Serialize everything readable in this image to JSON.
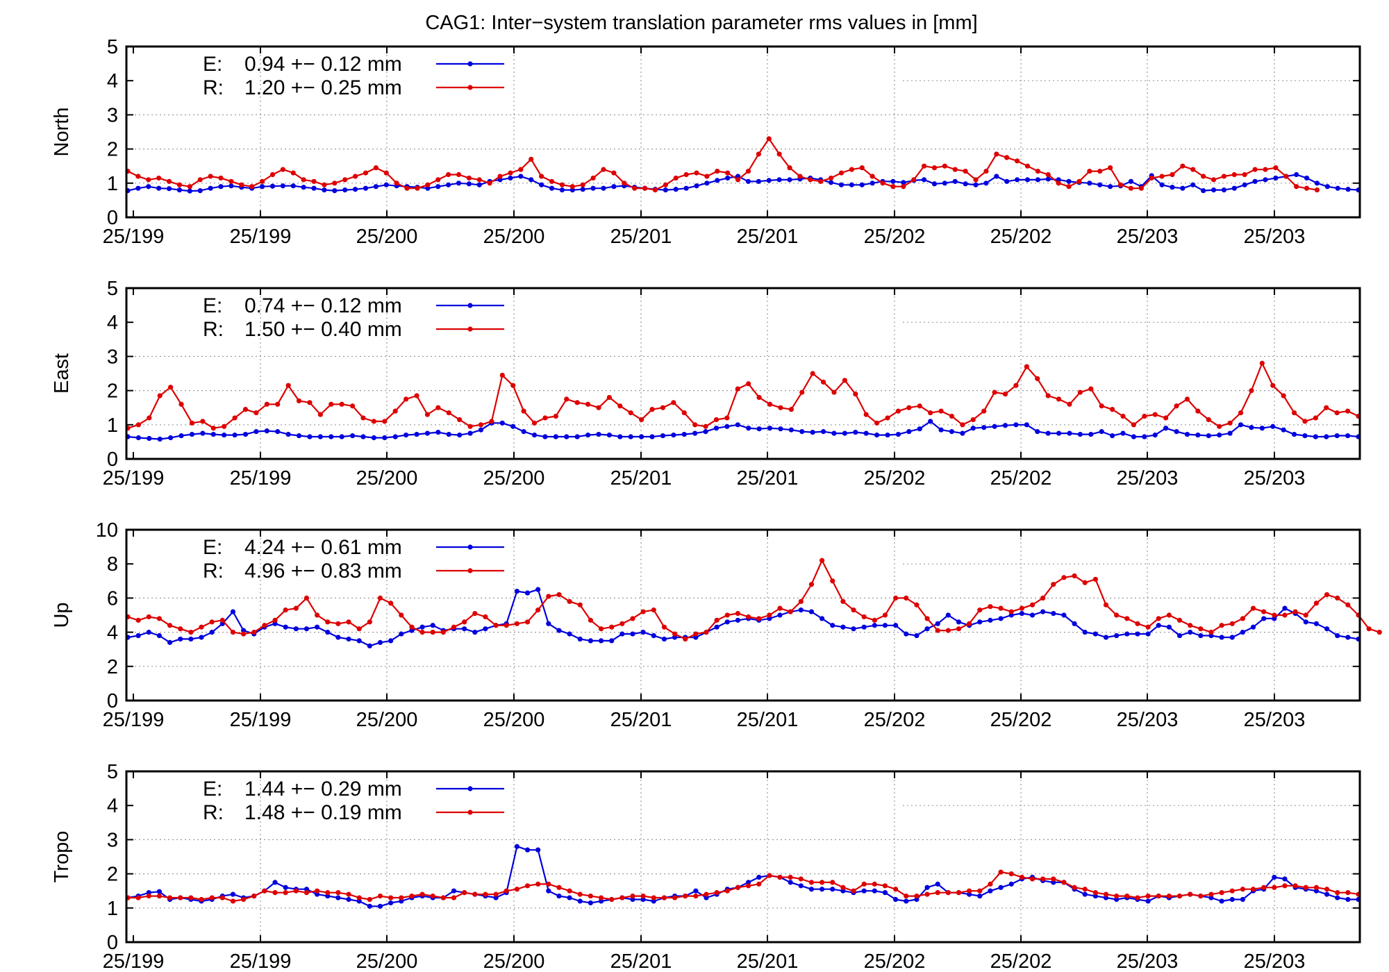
{
  "title": "CAG1: Inter−system translation parameter rms values in [mm]",
  "colors": {
    "E": "#0000dd",
    "R": "#dd0000",
    "axis": "#000000",
    "grid": "#9a9a9a"
  },
  "chart_data": [
    {
      "type": "line",
      "ylabel": "North",
      "ylim": [
        0,
        5
      ],
      "yticks": [
        0,
        1,
        2,
        3,
        4,
        5
      ],
      "xtick_labels": [
        "25/199",
        "25/199",
        "25/200",
        "25/200",
        "25/201",
        "25/201",
        "25/202",
        "25/202",
        "25/203",
        "25/203"
      ],
      "grid": true,
      "legend_position": "top-left",
      "series": [
        {
          "name": "E",
          "legend_text": "0.94 +− 0.12 mm",
          "values": [
            0.78,
            0.85,
            0.9,
            0.85,
            0.84,
            0.8,
            0.77,
            0.78,
            0.85,
            0.9,
            0.92,
            0.88,
            0.85,
            0.9,
            0.91,
            0.92,
            0.92,
            0.88,
            0.85,
            0.8,
            0.78,
            0.8,
            0.82,
            0.85,
            0.9,
            0.95,
            0.92,
            0.9,
            0.88,
            0.85,
            0.9,
            0.95,
            1.0,
            0.98,
            0.95,
            1.05,
            1.1,
            1.15,
            1.2,
            1.1,
            0.95,
            0.85,
            0.8,
            0.8,
            0.82,
            0.85,
            0.85,
            0.9,
            0.92,
            0.88,
            0.85,
            0.82,
            0.8,
            0.82,
            0.85,
            0.92,
            1.0,
            1.08,
            1.15,
            1.2,
            1.05,
            1.05,
            1.08,
            1.1,
            1.1,
            1.12,
            1.15,
            1.1,
            1.02,
            0.95,
            0.95,
            0.95,
            1.0,
            1.05,
            1.05,
            1.02,
            1.08,
            1.1,
            0.98,
            1.0,
            1.05,
            0.98,
            0.95,
            1.0,
            1.2,
            1.05,
            1.1,
            1.1,
            1.1,
            1.12,
            1.1,
            1.05,
            1.02,
            1.0,
            0.95,
            0.9,
            0.92,
            1.05,
            0.9,
            1.22,
            0.95,
            0.88,
            0.85,
            0.95,
            0.78,
            0.8,
            0.8,
            0.85,
            0.95,
            1.05,
            1.1,
            1.15,
            1.2,
            1.25,
            1.15,
            1.0,
            0.9,
            0.85,
            0.82,
            0.8
          ]
        },
        {
          "name": "R",
          "legend_text": "1.20 +− 0.25 mm",
          "values": [
            1.35,
            1.2,
            1.1,
            1.15,
            1.05,
            0.95,
            0.9,
            1.1,
            1.2,
            1.15,
            1.05,
            0.95,
            0.9,
            1.05,
            1.25,
            1.4,
            1.3,
            1.1,
            1.05,
            0.95,
            1.0,
            1.1,
            1.2,
            1.3,
            1.45,
            1.3,
            1.0,
            0.85,
            0.85,
            0.95,
            1.1,
            1.25,
            1.25,
            1.15,
            1.1,
            1.0,
            1.2,
            1.3,
            1.4,
            1.7,
            1.2,
            1.05,
            0.95,
            0.9,
            0.95,
            1.15,
            1.4,
            1.3,
            1.0,
            0.85,
            0.85,
            0.8,
            0.95,
            1.15,
            1.25,
            1.3,
            1.2,
            1.35,
            1.3,
            1.1,
            1.35,
            1.85,
            2.3,
            1.85,
            1.45,
            1.2,
            1.1,
            1.05,
            1.15,
            1.3,
            1.4,
            1.45,
            1.2,
            1.0,
            0.9,
            0.9,
            1.1,
            1.5,
            1.45,
            1.5,
            1.4,
            1.35,
            1.1,
            1.35,
            1.85,
            1.75,
            1.65,
            1.5,
            1.35,
            1.25,
            1.0,
            0.9,
            1.05,
            1.35,
            1.35,
            1.45,
            0.95,
            0.85,
            0.85,
            1.15,
            1.2,
            1.25,
            1.5,
            1.4,
            1.2,
            1.1,
            1.2,
            1.25,
            1.25,
            1.4,
            1.4,
            1.45,
            1.2,
            0.9,
            0.85,
            0.8
          ]
        }
      ]
    },
    {
      "type": "line",
      "ylabel": "East",
      "ylim": [
        0,
        5
      ],
      "yticks": [
        0,
        1,
        2,
        3,
        4,
        5
      ],
      "xtick_labels": [
        "25/199",
        "25/199",
        "25/200",
        "25/200",
        "25/201",
        "25/201",
        "25/202",
        "25/202",
        "25/203",
        "25/203"
      ],
      "grid": true,
      "legend_position": "top-left",
      "series": [
        {
          "name": "E",
          "legend_text": "0.74 +− 0.12 mm",
          "values": [
            0.65,
            0.62,
            0.6,
            0.58,
            0.62,
            0.68,
            0.72,
            0.75,
            0.72,
            0.7,
            0.7,
            0.72,
            0.8,
            0.82,
            0.8,
            0.72,
            0.68,
            0.65,
            0.65,
            0.65,
            0.65,
            0.68,
            0.65,
            0.62,
            0.62,
            0.65,
            0.7,
            0.72,
            0.75,
            0.78,
            0.72,
            0.7,
            0.75,
            0.85,
            1.05,
            1.05,
            0.95,
            0.8,
            0.7,
            0.65,
            0.65,
            0.65,
            0.65,
            0.7,
            0.72,
            0.7,
            0.65,
            0.65,
            0.65,
            0.65,
            0.68,
            0.7,
            0.72,
            0.75,
            0.8,
            0.9,
            0.95,
            1.0,
            0.9,
            0.88,
            0.9,
            0.88,
            0.85,
            0.8,
            0.78,
            0.8,
            0.75,
            0.75,
            0.78,
            0.75,
            0.7,
            0.7,
            0.72,
            0.8,
            0.88,
            1.1,
            0.85,
            0.8,
            0.75,
            0.9,
            0.92,
            0.95,
            0.98,
            1.0,
            1.0,
            0.8,
            0.75,
            0.75,
            0.75,
            0.72,
            0.72,
            0.8,
            0.68,
            0.75,
            0.65,
            0.65,
            0.7,
            0.9,
            0.8,
            0.72,
            0.7,
            0.68,
            0.7,
            0.75,
            1.0,
            0.92,
            0.9,
            0.95,
            0.85,
            0.72,
            0.68,
            0.65,
            0.65,
            0.68,
            0.68,
            0.65
          ]
        },
        {
          "name": "R",
          "legend_text": "1.50 +− 0.40 mm",
          "values": [
            0.9,
            1.0,
            1.2,
            1.85,
            2.1,
            1.6,
            1.05,
            1.1,
            0.9,
            0.95,
            1.2,
            1.45,
            1.35,
            1.6,
            1.6,
            2.15,
            1.7,
            1.65,
            1.3,
            1.6,
            1.6,
            1.55,
            1.2,
            1.1,
            1.1,
            1.4,
            1.75,
            1.85,
            1.3,
            1.5,
            1.35,
            1.15,
            0.95,
            1.0,
            1.1,
            2.45,
            2.15,
            1.4,
            1.05,
            1.2,
            1.25,
            1.75,
            1.65,
            1.6,
            1.5,
            1.8,
            1.55,
            1.35,
            1.15,
            1.45,
            1.5,
            1.65,
            1.35,
            1.0,
            0.95,
            1.15,
            1.2,
            2.05,
            2.2,
            1.8,
            1.6,
            1.5,
            1.45,
            1.95,
            2.5,
            2.25,
            1.95,
            2.3,
            1.9,
            1.3,
            1.05,
            1.2,
            1.4,
            1.5,
            1.55,
            1.35,
            1.4,
            1.25,
            1.0,
            1.15,
            1.4,
            1.95,
            1.9,
            2.15,
            2.7,
            2.35,
            1.85,
            1.75,
            1.6,
            1.95,
            2.05,
            1.55,
            1.45,
            1.25,
            1.0,
            1.25,
            1.3,
            1.2,
            1.55,
            1.75,
            1.4,
            1.15,
            0.95,
            1.05,
            1.35,
            2.0,
            2.8,
            2.15,
            1.85,
            1.35,
            1.1,
            1.2,
            1.5,
            1.35,
            1.4,
            1.25
          ]
        }
      ]
    },
    {
      "type": "line",
      "ylabel": "Up",
      "ylim": [
        0,
        10
      ],
      "yticks": [
        0,
        2,
        4,
        6,
        8,
        10
      ],
      "xtick_labels": [
        "25/199",
        "25/199",
        "25/200",
        "25/200",
        "25/201",
        "25/201",
        "25/202",
        "25/202",
        "25/203",
        "25/203"
      ],
      "grid": true,
      "legend_position": "top-left",
      "series": [
        {
          "name": "E",
          "legend_text": "4.24 +− 0.61 mm",
          "values": [
            3.7,
            3.8,
            4.0,
            3.8,
            3.4,
            3.6,
            3.6,
            3.7,
            4.0,
            4.5,
            5.2,
            4.1,
            3.9,
            4.3,
            4.5,
            4.3,
            4.2,
            4.2,
            4.3,
            4.0,
            3.7,
            3.6,
            3.5,
            3.2,
            3.4,
            3.5,
            3.9,
            4.1,
            4.3,
            4.4,
            4.1,
            4.2,
            4.2,
            4.0,
            4.2,
            4.4,
            4.5,
            6.4,
            6.3,
            6.5,
            4.5,
            4.1,
            3.9,
            3.6,
            3.5,
            3.5,
            3.5,
            3.9,
            3.9,
            4.0,
            3.8,
            3.6,
            3.7,
            3.7,
            3.7,
            4.0,
            4.3,
            4.6,
            4.7,
            4.8,
            4.7,
            4.8,
            5.0,
            5.2,
            5.3,
            5.2,
            4.8,
            4.4,
            4.3,
            4.2,
            4.3,
            4.4,
            4.4,
            4.4,
            3.9,
            3.8,
            4.2,
            4.5,
            5.0,
            4.6,
            4.4,
            4.6,
            4.7,
            4.8,
            5.0,
            5.1,
            5.0,
            5.2,
            5.1,
            5.0,
            4.5,
            4.0,
            3.9,
            3.7,
            3.8,
            3.9,
            3.9,
            3.9,
            4.4,
            4.3,
            3.8,
            4.0,
            3.8,
            3.8,
            3.7,
            3.7,
            4.0,
            4.3,
            4.8,
            4.8,
            5.4,
            5.1,
            4.6,
            4.5,
            4.2,
            3.8,
            3.7,
            3.6
          ]
        },
        {
          "name": "R",
          "legend_text": "4.96 +− 0.83 mm",
          "values": [
            4.9,
            4.7,
            4.9,
            4.8,
            4.4,
            4.2,
            4.0,
            4.3,
            4.6,
            4.7,
            4.0,
            3.9,
            4.0,
            4.4,
            4.7,
            5.3,
            5.4,
            6.0,
            5.0,
            4.6,
            4.5,
            4.6,
            4.2,
            4.6,
            6.0,
            5.7,
            5.0,
            4.3,
            4.0,
            4.0,
            4.0,
            4.3,
            4.6,
            5.1,
            4.9,
            4.4,
            4.4,
            4.5,
            4.6,
            5.3,
            6.1,
            6.2,
            5.8,
            5.6,
            4.7,
            4.2,
            4.3,
            4.5,
            4.8,
            5.2,
            5.3,
            4.3,
            3.9,
            3.6,
            3.9,
            4.0,
            4.7,
            5.0,
            5.1,
            4.9,
            4.8,
            5.0,
            5.4,
            5.2,
            5.8,
            6.8,
            8.2,
            7.0,
            5.8,
            5.3,
            4.9,
            4.7,
            5.0,
            6.0,
            6.0,
            5.6,
            4.8,
            4.1,
            4.1,
            4.2,
            4.5,
            5.3,
            5.5,
            5.4,
            5.2,
            5.4,
            5.6,
            6.0,
            6.8,
            7.2,
            7.3,
            6.9,
            7.1,
            5.6,
            5.0,
            4.8,
            4.5,
            4.3,
            4.8,
            5.0,
            4.7,
            4.4,
            4.2,
            4.0,
            4.4,
            4.5,
            4.8,
            5.4,
            5.2,
            5.0,
            5.0,
            5.2,
            5.0,
            5.7,
            6.2,
            6.0,
            5.6,
            5.0,
            4.2,
            4.0
          ]
        }
      ]
    },
    {
      "type": "line",
      "ylabel": "Tropo",
      "ylim": [
        0,
        5
      ],
      "yticks": [
        0,
        1,
        2,
        3,
        4,
        5
      ],
      "xtick_labels": [
        "25/199",
        "25/199",
        "25/200",
        "25/200",
        "25/201",
        "25/201",
        "25/202",
        "25/202",
        "25/203",
        "25/203"
      ],
      "grid": true,
      "legend_position": "top-left",
      "series": [
        {
          "name": "E",
          "legend_text": "1.44 +− 0.29 mm",
          "values": [
            1.3,
            1.35,
            1.45,
            1.48,
            1.25,
            1.3,
            1.25,
            1.2,
            1.25,
            1.35,
            1.4,
            1.3,
            1.35,
            1.5,
            1.75,
            1.6,
            1.55,
            1.55,
            1.4,
            1.35,
            1.3,
            1.25,
            1.2,
            1.05,
            1.05,
            1.15,
            1.2,
            1.3,
            1.35,
            1.3,
            1.3,
            1.5,
            1.45,
            1.4,
            1.35,
            1.3,
            1.45,
            2.8,
            2.7,
            2.7,
            1.5,
            1.35,
            1.3,
            1.2,
            1.15,
            1.2,
            1.25,
            1.3,
            1.25,
            1.25,
            1.2,
            1.3,
            1.35,
            1.35,
            1.5,
            1.3,
            1.4,
            1.55,
            1.6,
            1.75,
            1.9,
            1.95,
            1.9,
            1.75,
            1.65,
            1.55,
            1.55,
            1.55,
            1.5,
            1.45,
            1.5,
            1.5,
            1.45,
            1.25,
            1.2,
            1.25,
            1.6,
            1.7,
            1.45,
            1.45,
            1.4,
            1.35,
            1.5,
            1.6,
            1.7,
            1.85,
            1.9,
            1.8,
            1.75,
            1.75,
            1.55,
            1.4,
            1.35,
            1.3,
            1.25,
            1.3,
            1.25,
            1.2,
            1.35,
            1.3,
            1.35,
            1.4,
            1.35,
            1.3,
            1.2,
            1.25,
            1.25,
            1.5,
            1.55,
            1.9,
            1.85,
            1.6,
            1.55,
            1.5,
            1.4,
            1.3,
            1.25,
            1.25
          ]
        },
        {
          "name": "R",
          "legend_text": "1.48 +− 0.19 mm",
          "values": [
            1.3,
            1.3,
            1.35,
            1.35,
            1.3,
            1.3,
            1.3,
            1.25,
            1.3,
            1.3,
            1.2,
            1.25,
            1.35,
            1.5,
            1.45,
            1.45,
            1.5,
            1.45,
            1.5,
            1.45,
            1.45,
            1.4,
            1.3,
            1.25,
            1.35,
            1.3,
            1.3,
            1.35,
            1.4,
            1.35,
            1.3,
            1.3,
            1.45,
            1.4,
            1.4,
            1.4,
            1.5,
            1.55,
            1.65,
            1.7,
            1.7,
            1.6,
            1.5,
            1.4,
            1.35,
            1.3,
            1.25,
            1.3,
            1.35,
            1.35,
            1.3,
            1.3,
            1.3,
            1.35,
            1.35,
            1.4,
            1.45,
            1.5,
            1.6,
            1.65,
            1.7,
            1.95,
            1.9,
            1.9,
            1.85,
            1.75,
            1.75,
            1.75,
            1.6,
            1.5,
            1.7,
            1.7,
            1.65,
            1.55,
            1.35,
            1.35,
            1.4,
            1.45,
            1.45,
            1.45,
            1.5,
            1.5,
            1.7,
            2.05,
            2.0,
            1.9,
            1.85,
            1.85,
            1.85,
            1.75,
            1.6,
            1.55,
            1.45,
            1.4,
            1.35,
            1.35,
            1.3,
            1.35,
            1.35,
            1.35,
            1.35,
            1.4,
            1.35,
            1.4,
            1.45,
            1.5,
            1.55,
            1.55,
            1.6,
            1.6,
            1.65,
            1.65,
            1.6,
            1.6,
            1.55,
            1.45,
            1.45,
            1.4
          ]
        }
      ]
    }
  ]
}
